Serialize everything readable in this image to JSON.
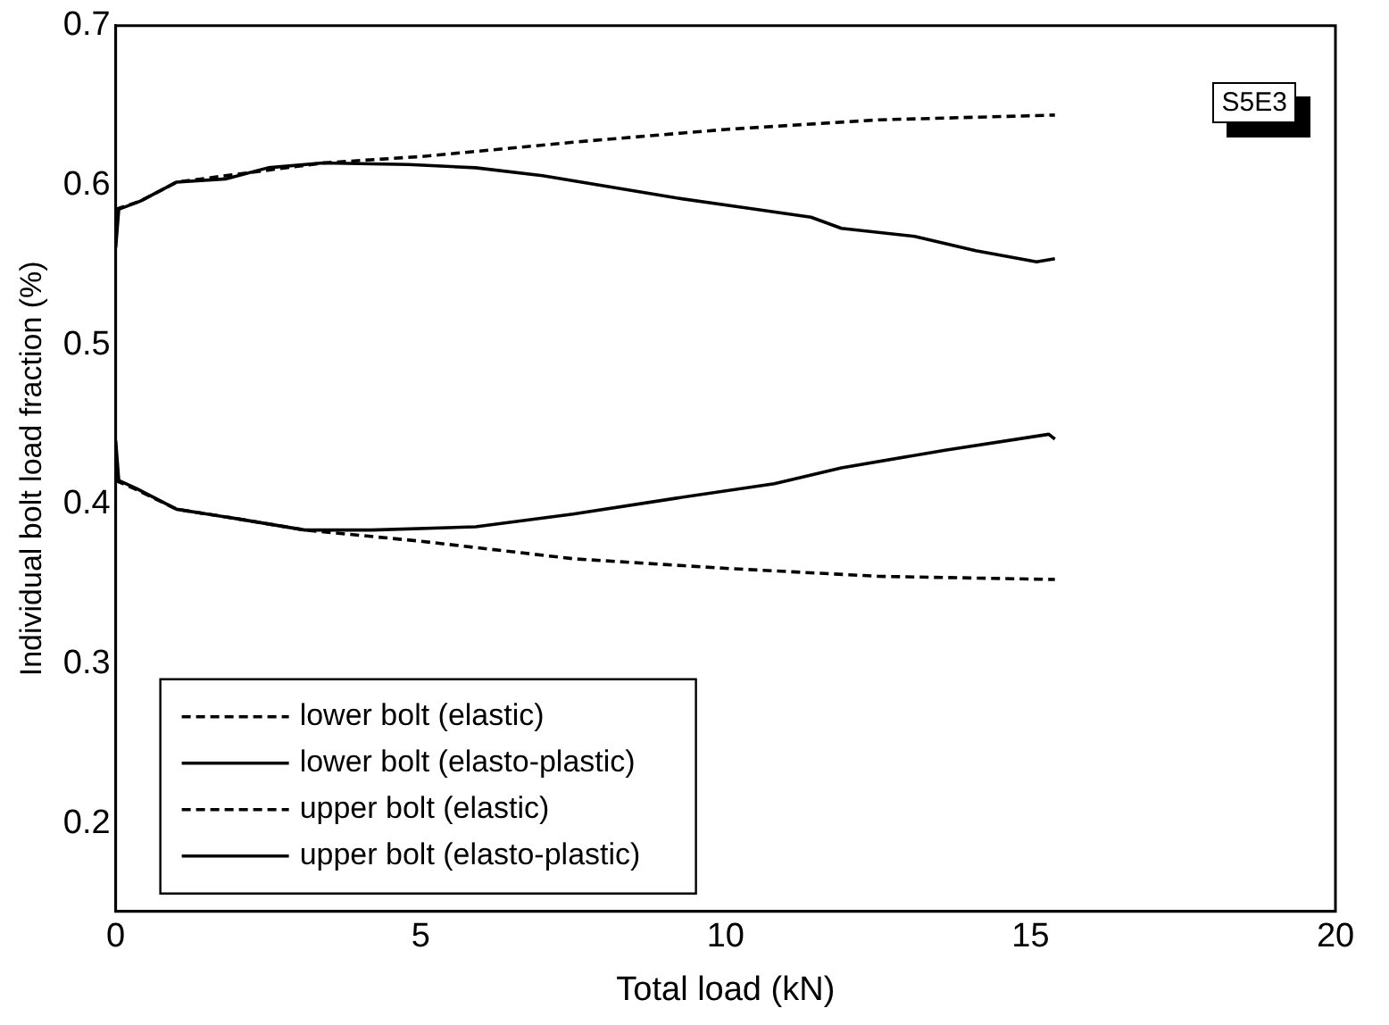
{
  "chart_data": {
    "type": "line",
    "xlabel": "Total load (kN)",
    "ylabel": "Individual bolt load fraction (%)",
    "xlim": [
      0,
      20
    ],
    "xticks": [
      0,
      5,
      10,
      15,
      20
    ],
    "ylim": [
      0.145,
      0.7
    ],
    "yticks": [
      0.2,
      0.3,
      0.4,
      0.5,
      0.6,
      0.7
    ],
    "grid": false,
    "legend": "bottom left",
    "marker": "none",
    "annotations": [
      "S5E3"
    ],
    "series": [
      {
        "name": "lower bolt (elastic)",
        "color": "#000000",
        "line_style": "dashed",
        "x": [
          0,
          0.4,
          1.0,
          2.0,
          3.4,
          5,
          7.5,
          10,
          12.5,
          15.4
        ],
        "values": [
          0.585,
          0.59,
          0.602,
          0.607,
          0.614,
          0.618,
          0.627,
          0.635,
          0.641,
          0.644
        ]
      },
      {
        "name": "lower bolt (elasto-plastic)",
        "color": "#000000",
        "line_style": "solid",
        "x": [
          0,
          0.05,
          0.4,
          1.0,
          1.8,
          2.5,
          3.4,
          4.8,
          5.9,
          7.0,
          8.1,
          9.2,
          10.3,
          11.4,
          11.9,
          13.1,
          14.1,
          15.1,
          15.4
        ],
        "values": [
          0.561,
          0.585,
          0.59,
          0.602,
          0.604,
          0.611,
          0.614,
          0.613,
          0.611,
          0.606,
          0.599,
          0.592,
          0.586,
          0.58,
          0.573,
          0.568,
          0.559,
          0.552,
          0.554
        ]
      },
      {
        "name": "upper bolt (elastic)",
        "color": "#000000",
        "line_style": "dashed",
        "x": [
          0,
          0.3,
          1.0,
          2.0,
          3.1,
          5,
          7.5,
          10,
          12.5,
          15.4
        ],
        "values": [
          0.415,
          0.41,
          0.397,
          0.391,
          0.384,
          0.377,
          0.366,
          0.36,
          0.355,
          0.353
        ]
      },
      {
        "name": "upper bolt (elasto-plastic)",
        "color": "#000000",
        "line_style": "solid",
        "x": [
          0,
          0.05,
          0.34,
          1.0,
          2.0,
          3.1,
          4.2,
          5.9,
          7.5,
          9.2,
          10.8,
          11.9,
          13.6,
          15.3,
          15.4
        ],
        "values": [
          0.44,
          0.415,
          0.41,
          0.397,
          0.391,
          0.384,
          0.384,
          0.386,
          0.394,
          0.404,
          0.413,
          0.423,
          0.434,
          0.444,
          0.441
        ]
      }
    ]
  }
}
